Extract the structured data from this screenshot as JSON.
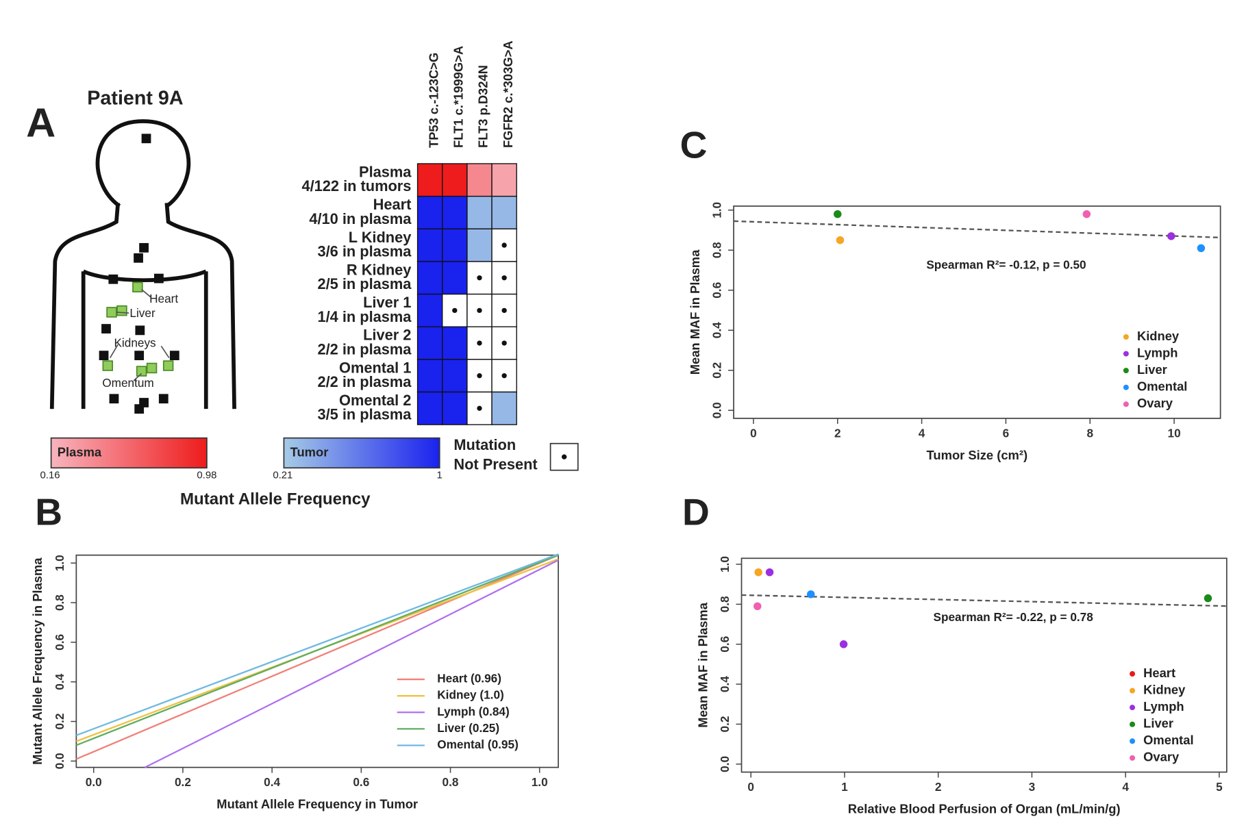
{
  "panel_labels": [
    "A",
    "B",
    "C",
    "D"
  ],
  "diagram": {
    "title": "Patient 9A",
    "labels": [
      "Heart",
      "Liver",
      "Kidneys",
      "Omentum"
    ]
  },
  "chart_data": [
    {
      "type": "heatmap",
      "columns": [
        "TP53 c.-123C>G",
        "FLT1 c.*1999G>A",
        "FLT3 p.D324N",
        "FGFR2 c.*303G>A"
      ],
      "rows": [
        {
          "name": "Plasma",
          "detail": "4/122 in tumors",
          "scale": 0,
          "values": [
            0.98,
            0.98,
            0.4,
            0.25
          ]
        },
        {
          "name": "Heart",
          "detail": "4/10 in plasma",
          "scale": 1,
          "values": [
            1,
            1,
            0.3,
            0.3
          ]
        },
        {
          "name": "L Kidney",
          "detail": "3/6 in plasma",
          "scale": 1,
          "values": [
            1,
            1,
            0.3,
            null
          ]
        },
        {
          "name": "R Kidney",
          "detail": "2/5 in plasma",
          "scale": 1,
          "values": [
            1,
            1,
            null,
            null
          ]
        },
        {
          "name": "Liver 1",
          "detail": "1/4 in plasma",
          "scale": 1,
          "values": [
            1,
            null,
            null,
            null
          ]
        },
        {
          "name": "Liver 2",
          "detail": "2/2 in plasma",
          "scale": 1,
          "values": [
            1,
            1,
            null,
            null
          ]
        },
        {
          "name": "Omental 1",
          "detail": "2/2 in plasma",
          "scale": 1,
          "values": [
            1,
            1,
            null,
            null
          ]
        },
        {
          "name": "Omental 2",
          "detail": "3/5 in plasma",
          "scale": 1,
          "values": [
            1,
            1,
            null,
            0.3
          ]
        }
      ],
      "colorscales": [
        {
          "name": "Plasma",
          "range": [
            0.16,
            0.98
          ],
          "colors": [
            "#f8b4be",
            "#ee1c1c"
          ]
        },
        {
          "name": "Tumor",
          "range": [
            0.21,
            1
          ],
          "colors": [
            "#a6cbe6",
            "#1a22ee"
          ]
        }
      ],
      "missing_label": [
        "Mutation",
        "Not Present"
      ],
      "colorbar_title": "Mutant Allele Frequency"
    },
    {
      "type": "line",
      "x_label": "Mutant Allele Frequency in Tumor",
      "y_label": "Mutant Allele Frequency in Plasma",
      "xlim": [
        -0.039,
        1.042
      ],
      "ylim": [
        -0.032,
        1.04
      ],
      "xticks": [
        {
          "value": 0,
          "label": "0.0"
        },
        0.2,
        0.4,
        0.6,
        0.8,
        {
          "value": 1,
          "label": "1.0"
        }
      ],
      "yticks": [
        {
          "value": 0,
          "label": "0.0"
        },
        0.2,
        0.4,
        0.6,
        0.8,
        {
          "value": 1,
          "label": "1.0"
        }
      ],
      "legend": "bottom-right",
      "series": [
        {
          "name": "Heart (0.96)",
          "color": "#f08078",
          "x": [
            -0.039,
            1.042
          ],
          "values": [
            0.01,
            1.04
          ]
        },
        {
          "name": "Kidney (1.0)",
          "color": "#f0c040",
          "x": [
            -0.039,
            1.042
          ],
          "values": [
            0.1,
            1.02
          ]
        },
        {
          "name": "Lymph (0.84)",
          "color": "#b070f0",
          "x": [
            0.115,
            1.042
          ],
          "values": [
            -0.032,
            1.015
          ]
        },
        {
          "name": "Liver (0.25)",
          "color": "#5fae5f",
          "x": [
            -0.039,
            1.042
          ],
          "values": [
            0.08,
            1.04
          ]
        },
        {
          "name": "Omental (0.95)",
          "color": "#70b8e0",
          "x": [
            -0.039,
            1.042
          ],
          "values": [
            0.13,
            1.045
          ]
        }
      ]
    },
    {
      "type": "scatter",
      "x_label": "Tumor Size (cm²)",
      "y_label": "Mean MAF in Plasma",
      "annotation": "Spearman R²= -0.12, p = 0.50",
      "xlim": [
        -0.47,
        11.1
      ],
      "ylim": [
        -0.04,
        1.02
      ],
      "xticks": [
        0,
        2,
        4,
        6,
        8,
        10
      ],
      "yticks": [
        {
          "value": 0,
          "label": "0.0"
        },
        0.2,
        0.4,
        0.6,
        0.8,
        {
          "value": 1,
          "label": "1.0"
        }
      ],
      "legend": "bottom-right",
      "trend": {
        "x": [
          -0.47,
          11.1
        ],
        "values": [
          0.945,
          0.863
        ]
      },
      "series": [
        {
          "name": "Kidney",
          "color": "#f5a623",
          "x": [
            2.06
          ],
          "values": [
            0.85
          ]
        },
        {
          "name": "Lymph",
          "color": "#9b30e0",
          "x": [
            9.93
          ],
          "values": [
            0.87
          ]
        },
        {
          "name": "Liver",
          "color": "#1a8a1a",
          "x": [
            2.0
          ],
          "values": [
            0.98
          ]
        },
        {
          "name": "Omental",
          "color": "#1e90ff",
          "x": [
            10.64
          ],
          "values": [
            0.81
          ]
        },
        {
          "name": "Ovary",
          "color": "#f060b0",
          "x": [
            7.92
          ],
          "values": [
            0.98
          ]
        }
      ]
    },
    {
      "type": "scatter",
      "x_label": "Relative Blood Perfusion of Organ (mL/min/g)",
      "y_label": "Mean MAF in Plasma",
      "annotation": "Spearman R²= -0.22, p = 0.78",
      "xlim": [
        -0.1,
        5.08
      ],
      "ylim": [
        -0.04,
        1.03
      ],
      "xticks": [
        0,
        1,
        2,
        3,
        4,
        5
      ],
      "yticks": [
        {
          "value": 0,
          "label": "0.0"
        },
        0.2,
        0.4,
        0.6,
        0.8,
        {
          "value": 1,
          "label": "1.0"
        }
      ],
      "legend": "bottom-right",
      "trend": {
        "x": [
          -0.1,
          5.08
        ],
        "values": [
          0.846,
          0.791
        ]
      },
      "series": [
        {
          "name": "Heart",
          "color": "#e81a1a",
          "x": [],
          "values": []
        },
        {
          "name": "Kidney",
          "color": "#f5a623",
          "x": [
            0.08
          ],
          "values": [
            0.96
          ]
        },
        {
          "name": "Lymph",
          "color": "#9b30e0",
          "x": [
            0.2,
            0.99
          ],
          "values": [
            0.96,
            0.6
          ]
        },
        {
          "name": "Liver",
          "color": "#1a8a1a",
          "x": [
            4.88
          ],
          "values": [
            0.83
          ]
        },
        {
          "name": "Omental",
          "color": "#1e90ff",
          "x": [
            0.64
          ],
          "values": [
            0.85
          ]
        },
        {
          "name": "Ovary",
          "color": "#f060b0",
          "x": [
            0.07
          ],
          "values": [
            0.79
          ]
        }
      ]
    }
  ]
}
